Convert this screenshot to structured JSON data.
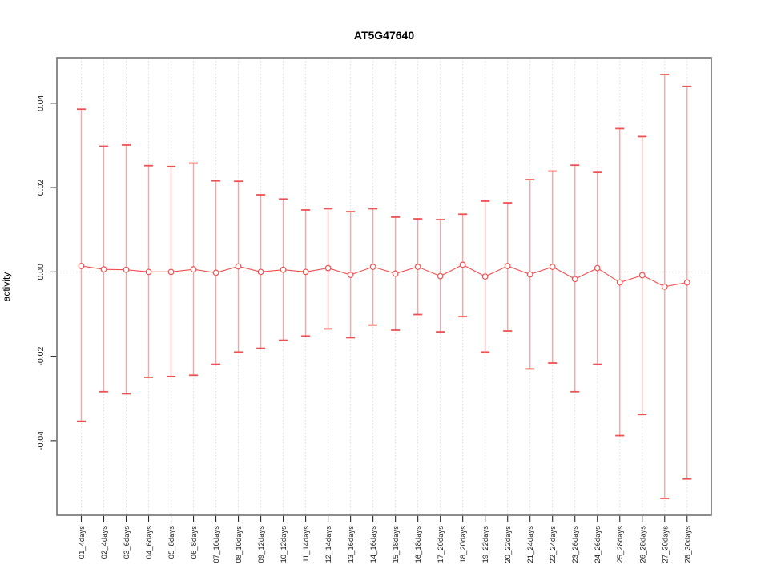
{
  "chart_data": {
    "type": "line",
    "subtype": "points-with-error-bars",
    "title": "AT5G47640",
    "ylabel": "activity",
    "xlabel": "",
    "categories": [
      "01_4days",
      "02_4days",
      "03_6days",
      "04_6days",
      "05_8days",
      "06_8days",
      "07_10days",
      "08_10days",
      "09_12days",
      "10_12days",
      "11_14days",
      "12_14days",
      "13_16days",
      "14_16days",
      "15_18days",
      "16_18days",
      "17_20days",
      "18_20days",
      "19_22days",
      "20_22days",
      "21_24days",
      "22_24days",
      "23_26days",
      "24_26days",
      "25_28days",
      "26_28days",
      "27_30days",
      "28_30days"
    ],
    "series": [
      {
        "name": "activity",
        "values": [
          0.0014,
          0.0006,
          0.0005,
          0.0,
          0.0,
          0.0006,
          -0.0002,
          0.0013,
          0.0,
          0.0005,
          0.0,
          0.0009,
          -0.0007,
          0.0012,
          -0.0004,
          0.0012,
          -0.001,
          0.0017,
          -0.0011,
          0.0014,
          -0.0006,
          0.0012,
          -0.0017,
          0.0009,
          -0.0025,
          -0.0008,
          -0.0035,
          -0.0025
        ],
        "upper": [
          0.0386,
          0.0298,
          0.0301,
          0.0252,
          0.025,
          0.0258,
          0.0216,
          0.0215,
          0.0183,
          0.0173,
          0.0147,
          0.015,
          0.0143,
          0.015,
          0.013,
          0.0126,
          0.0124,
          0.0137,
          0.0168,
          0.0164,
          0.0219,
          0.0239,
          0.0253,
          0.0236,
          0.034,
          0.0321,
          0.0468,
          0.044
        ],
        "lower": [
          -0.0354,
          -0.0284,
          -0.0289,
          -0.025,
          -0.0248,
          -0.0245,
          -0.0219,
          -0.019,
          -0.0181,
          -0.0162,
          -0.0152,
          -0.0135,
          -0.0156,
          -0.0126,
          -0.0138,
          -0.0101,
          -0.0142,
          -0.0106,
          -0.019,
          -0.014,
          -0.023,
          -0.0216,
          -0.0284,
          -0.0219,
          -0.0388,
          -0.0338,
          -0.0537,
          -0.0491
        ]
      }
    ],
    "ytick_labels": [
      "-0.04",
      "-0.02",
      "0.00",
      "0.02",
      "0.04"
    ],
    "ytick_values": [
      -0.04,
      -0.02,
      0.0,
      0.02,
      0.04
    ],
    "ylim": [
      -0.0577,
      0.0508
    ],
    "legend": "none",
    "grid": "vertical dotted gridline per category; horizontal dotted line at y=0",
    "marker": "open-circle",
    "colors": {
      "marker": "#ed5151",
      "stem": "#f4a7a7",
      "grid": "#dcdcdc",
      "zero_line": "#d8d8d8",
      "box": "#6f6f6f",
      "text": "#000000"
    }
  }
}
